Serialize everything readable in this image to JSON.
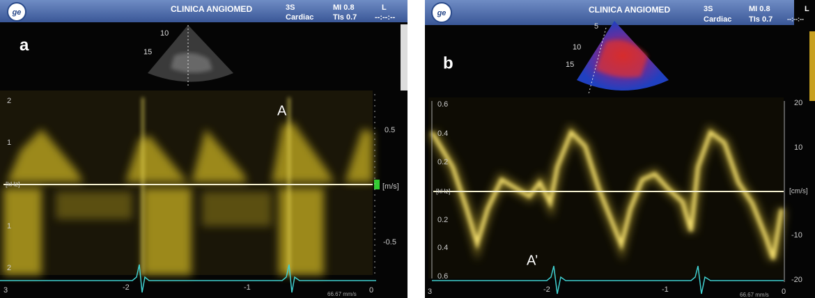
{
  "panels": [
    {
      "header": {
        "clinic": "CLINICA ANGIOMED",
        "probe": "3S",
        "preset": "Cardiac",
        "mi": "MI 0.8",
        "tis": "TIs 0.7",
        "orientation": "L",
        "time": "--:--:--"
      },
      "label": "a",
      "depth_marks": [
        "10",
        "15"
      ],
      "annotation": "A",
      "left_scale": [
        "2",
        "1",
        "[kHz]",
        "1",
        "2"
      ],
      "right_scale": [
        "0.5",
        "[m/s]",
        "-0.5"
      ],
      "time_scale": [
        "3",
        "-2",
        "-1",
        "0"
      ],
      "sweep": "66.67 mm/s"
    },
    {
      "header": {
        "clinic": "CLINICA ANGIOMED",
        "probe": "3S",
        "preset": "Cardiac",
        "mi": "MI 0.8",
        "tis": "TIs 0.7",
        "orientation": "L",
        "time": "--:--:--"
      },
      "label": "b",
      "depth_marks": [
        "5",
        "10",
        "15"
      ],
      "annotation": "A’",
      "left_scale": [
        "0.6",
        "0.4",
        "0.2",
        "[kHz]",
        "0.2",
        "0.4",
        "0.6"
      ],
      "right_scale": [
        "20",
        "10",
        "[cm/s]",
        "-10",
        "-20"
      ],
      "time_scale": [
        "3",
        "-2",
        "-1",
        "0"
      ],
      "sweep": "66.67 mm/s"
    }
  ]
}
